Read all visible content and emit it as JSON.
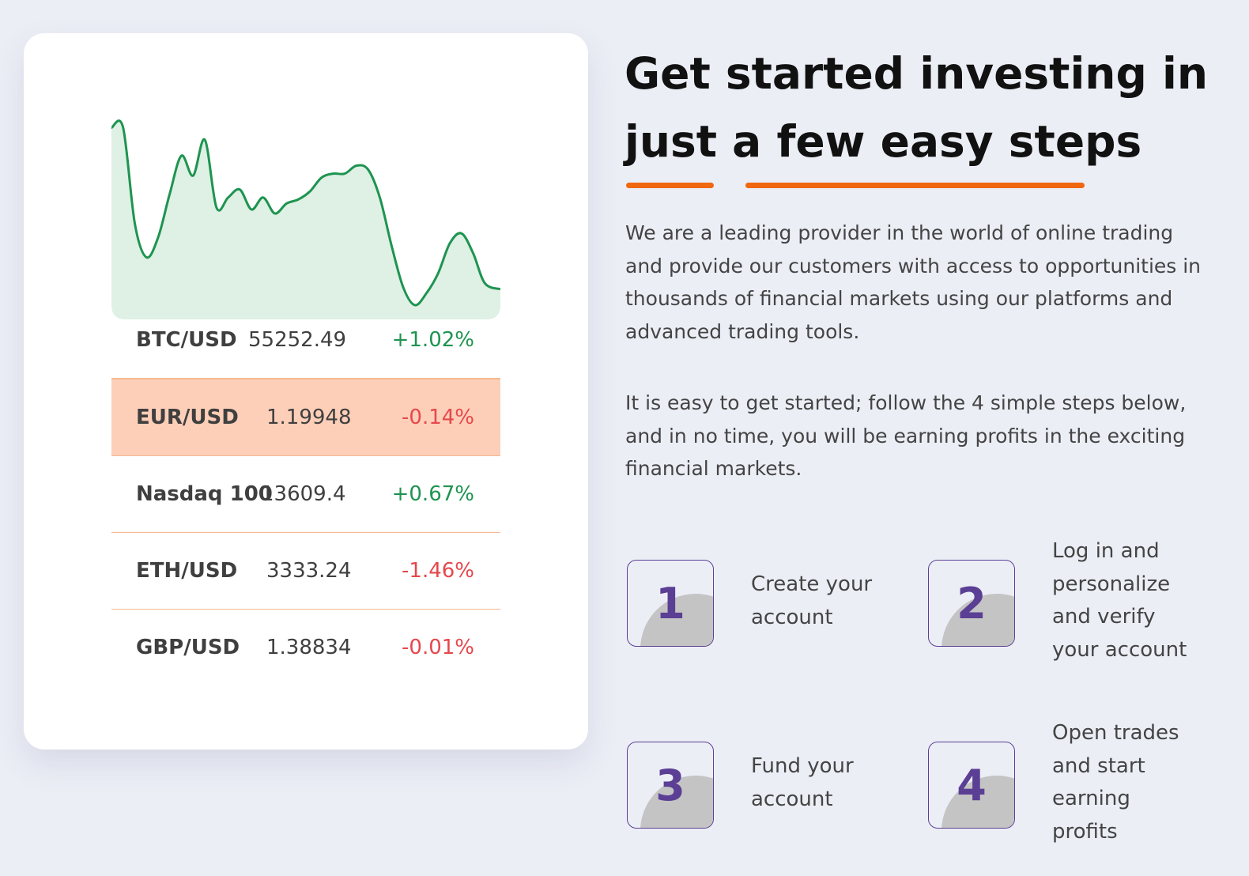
{
  "chart_data": {
    "type": "area",
    "x": [
      0,
      0.03,
      0.06,
      0.09,
      0.12,
      0.15,
      0.18,
      0.21,
      0.24,
      0.27,
      0.3,
      0.33,
      0.36,
      0.39,
      0.42,
      0.45,
      0.48,
      0.51,
      0.54,
      0.57,
      0.6,
      0.63,
      0.66,
      0.69,
      0.72,
      0.75,
      0.78,
      0.81,
      0.84,
      0.87,
      0.9,
      0.93,
      0.96,
      1.0
    ],
    "values": [
      0.93,
      0.93,
      0.45,
      0.28,
      0.38,
      0.6,
      0.79,
      0.69,
      0.87,
      0.53,
      0.58,
      0.62,
      0.52,
      0.58,
      0.5,
      0.55,
      0.57,
      0.61,
      0.68,
      0.7,
      0.7,
      0.74,
      0.72,
      0.58,
      0.34,
      0.13,
      0.04,
      0.1,
      0.2,
      0.35,
      0.4,
      0.3,
      0.15,
      0.12
    ],
    "series_color": "#1e9450",
    "fill_color": "#dff0e5",
    "ylim": [
      0,
      1
    ]
  },
  "rates": [
    {
      "pair": "BTC/USD",
      "price": "55252.49",
      "change": "+1.02%",
      "direction": "up",
      "highlight": false
    },
    {
      "pair": "EUR/USD",
      "price": "1.19948",
      "change": "-0.14%",
      "direction": "down",
      "highlight": true
    },
    {
      "pair": "Nasdaq 100",
      "price": "13609.4",
      "change": "+0.67%",
      "direction": "up",
      "highlight": false
    },
    {
      "pair": "ETH/USD",
      "price": "3333.24",
      "change": "-1.46%",
      "direction": "down",
      "highlight": false
    },
    {
      "pair": "GBP/USD",
      "price": "1.38834",
      "change": "-0.01%",
      "direction": "down",
      "highlight": false
    }
  ],
  "hero": {
    "title_line1": "Get started investing in",
    "title_line2": "just a few easy steps",
    "para1": "We are a leading provider in the world of online trading and provide our customers with access to opportunities in thousands of financial markets using our platforms and advanced trading tools.",
    "para2": "It is easy to get started; follow the 4 simple steps below, and in no time, you will be earning profits in the exciting financial markets."
  },
  "steps": [
    {
      "number": "1",
      "lines": [
        "Create your",
        "account"
      ]
    },
    {
      "number": "2",
      "lines": [
        "Log in and",
        "personalize",
        "and verify",
        "your account"
      ]
    },
    {
      "number": "3",
      "lines": [
        "Fund your",
        "account"
      ]
    },
    {
      "number": "4",
      "lines": [
        "Open trades",
        "and start",
        "earning",
        "profits"
      ]
    }
  ],
  "colors": {
    "accent_orange": "#f0670f",
    "step_purple": "#5a3f94",
    "up_green": "#1e9450",
    "down_red": "#e5484d"
  }
}
